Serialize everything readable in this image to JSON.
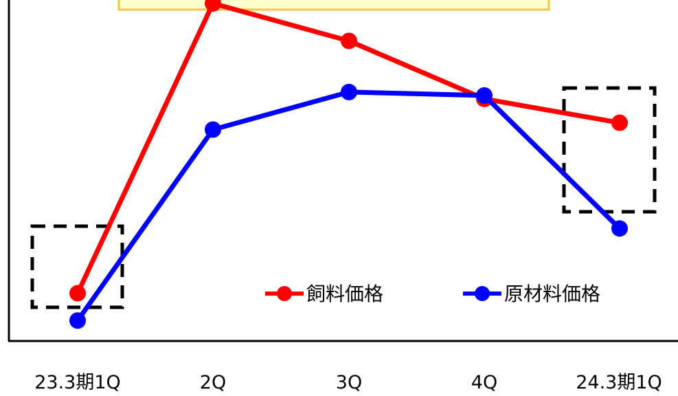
{
  "chart_data": {
    "type": "line",
    "title": "",
    "xlabel": "",
    "ylabel": "",
    "categories": [
      "23.3期1Q",
      "2Q",
      "3Q",
      "4Q",
      "24.3期1Q"
    ],
    "ylim": [
      0,
      100
    ],
    "grid": false,
    "legend_position": "bottom-right",
    "series": [
      {
        "name": "飼料価格",
        "color": "#ff0000",
        "values": [
          14,
          99,
          88,
          71,
          64
        ]
      },
      {
        "name": "原材料価格",
        "color": "#0000ff",
        "values": [
          6,
          62,
          73,
          72,
          33
        ]
      }
    ],
    "annotations": {
      "highlight_first": true,
      "highlight_last": true,
      "top_box_fill": "#ffffcc",
      "top_box_border": "#f5c242"
    }
  }
}
